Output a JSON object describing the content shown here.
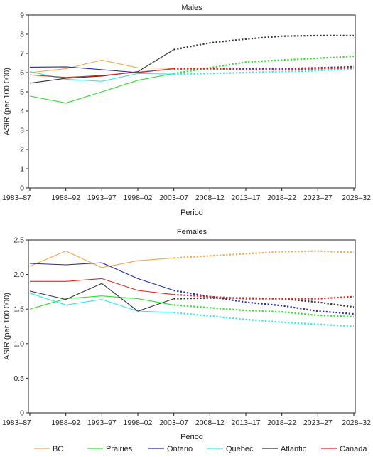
{
  "chart_data": [
    {
      "type": "line",
      "title": "Males",
      "xlabel": "Period",
      "ylabel": "ASIR (per 100 000)",
      "ylim": [
        0,
        9
      ],
      "yticks": [
        "0",
        "1",
        "2",
        "3",
        "4",
        "5",
        "6",
        "7",
        "8",
        "9"
      ],
      "categories": [
        "1983–87",
        "1988–92",
        "1993–97",
        "1998–02",
        "2003–07",
        "2008–12",
        "2013–17",
        "2018–22",
        "2023–27",
        "2028–32"
      ],
      "observed_through_index": 4,
      "grid": false,
      "series": [
        {
          "name": "BC",
          "color": "#f5a64a",
          "values": [
            6.0,
            6.2,
            6.65,
            6.25,
            6.22,
            6.2,
            6.2,
            6.15,
            6.22,
            6.3
          ]
        },
        {
          "name": "Prairies",
          "color": "#33dd33",
          "values": [
            4.78,
            4.42,
            5.0,
            5.6,
            5.95,
            6.25,
            6.55,
            6.65,
            6.75,
            6.85
          ]
        },
        {
          "name": "Ontario",
          "color": "#2a2aa8",
          "values": [
            6.28,
            6.3,
            6.15,
            6.0,
            6.2,
            6.22,
            6.2,
            6.2,
            6.25,
            6.3
          ]
        },
        {
          "name": "Quebec",
          "color": "#33e6ee",
          "values": [
            6.05,
            5.65,
            5.55,
            5.95,
            5.92,
            5.95,
            6.0,
            6.05,
            6.1,
            6.2
          ]
        },
        {
          "name": "Atlantic",
          "color": "#333333",
          "values": [
            5.45,
            5.7,
            5.82,
            6.05,
            7.2,
            7.55,
            7.75,
            7.9,
            7.93,
            7.93
          ]
        },
        {
          "name": "Canada",
          "color": "#e0271f",
          "values": [
            5.88,
            5.75,
            5.85,
            6.02,
            6.2,
            6.2,
            6.15,
            6.15,
            6.2,
            6.25
          ]
        }
      ]
    },
    {
      "type": "line",
      "title": "Females",
      "xlabel": "Period",
      "ylabel": "ASIR (per 100 000)",
      "ylim": [
        0,
        2.5
      ],
      "yticks": [
        "0",
        "0.5",
        "1.0",
        "1.5",
        "2.0",
        "2.5"
      ],
      "categories": [
        "1983–87",
        "1988–92",
        "1993–97",
        "1998–02",
        "2003–07",
        "2008–12",
        "2013–17",
        "2018–22",
        "2023–27",
        "2028–32"
      ],
      "observed_through_index": 4,
      "grid": false,
      "series": [
        {
          "name": "BC",
          "color": "#f5a64a",
          "values": [
            2.12,
            2.34,
            2.1,
            2.2,
            2.24,
            2.27,
            2.3,
            2.33,
            2.34,
            2.32
          ]
        },
        {
          "name": "Prairies",
          "color": "#33dd33",
          "values": [
            1.5,
            1.65,
            1.69,
            1.65,
            1.56,
            1.52,
            1.48,
            1.46,
            1.41,
            1.39
          ]
        },
        {
          "name": "Ontario",
          "color": "#2a2aa8",
          "values": [
            2.16,
            2.14,
            2.17,
            1.94,
            1.77,
            1.68,
            1.6,
            1.55,
            1.47,
            1.43
          ]
        },
        {
          "name": "Quebec",
          "color": "#33e6ee",
          "values": [
            1.73,
            1.56,
            1.64,
            1.47,
            1.45,
            1.4,
            1.35,
            1.31,
            1.28,
            1.25
          ]
        },
        {
          "name": "Atlantic",
          "color": "#333333",
          "values": [
            1.76,
            1.64,
            1.87,
            1.47,
            1.65,
            1.66,
            1.66,
            1.65,
            1.6,
            1.53
          ]
        },
        {
          "name": "Canada",
          "color": "#e0271f",
          "values": [
            1.9,
            1.9,
            1.94,
            1.77,
            1.71,
            1.68,
            1.65,
            1.65,
            1.65,
            1.68
          ]
        }
      ]
    }
  ],
  "legend": {
    "placement": "bottom",
    "entries": [
      {
        "name": "BC",
        "color": "#f5a64a"
      },
      {
        "name": "Prairies",
        "color": "#33dd33"
      },
      {
        "name": "Ontario",
        "color": "#2a2aa8"
      },
      {
        "name": "Quebec",
        "color": "#33e6ee"
      },
      {
        "name": "Atlantic",
        "color": "#333333"
      },
      {
        "name": "Canada",
        "color": "#e0271f"
      }
    ]
  }
}
